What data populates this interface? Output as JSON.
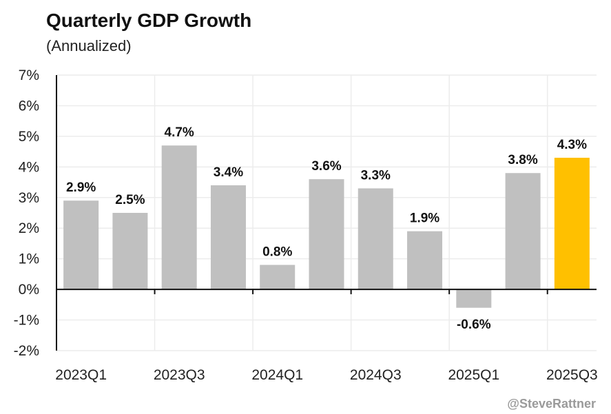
{
  "chart_data": {
    "type": "bar",
    "title": "Quarterly GDP Growth",
    "subtitle": "(Annualized)",
    "categories": [
      "2023Q1",
      "2023Q2",
      "2023Q3",
      "2023Q4",
      "2024Q1",
      "2024Q2",
      "2024Q3",
      "2024Q4",
      "2025Q1",
      "2025Q2",
      "2025Q3"
    ],
    "values": [
      2.9,
      2.5,
      4.7,
      3.4,
      0.8,
      3.6,
      3.3,
      1.9,
      -0.6,
      3.8,
      4.3
    ],
    "data_labels": [
      "2.9%",
      "2.5%",
      "4.7%",
      "3.4%",
      "0.8%",
      "3.6%",
      "3.3%",
      "1.9%",
      "-0.6%",
      "3.8%",
      "4.3%"
    ],
    "x_tick_labels": [
      "2023Q1",
      "2023Q3",
      "2024Q1",
      "2024Q3",
      "2025Q1",
      "2025Q3"
    ],
    "y_tick_labels": [
      "7%",
      "6%",
      "5%",
      "4%",
      "3%",
      "2%",
      "1%",
      "0%",
      "-1%",
      "-2%"
    ],
    "ylim": [
      -2,
      7
    ],
    "xlabel": "",
    "ylabel": "",
    "grid": true,
    "colors": {
      "bar": "#c0c0c0",
      "highlight": "#ffc000",
      "grid": "#ececec",
      "axis": "#111111"
    },
    "highlight_index": 10
  },
  "credit": "@SteveRattner"
}
